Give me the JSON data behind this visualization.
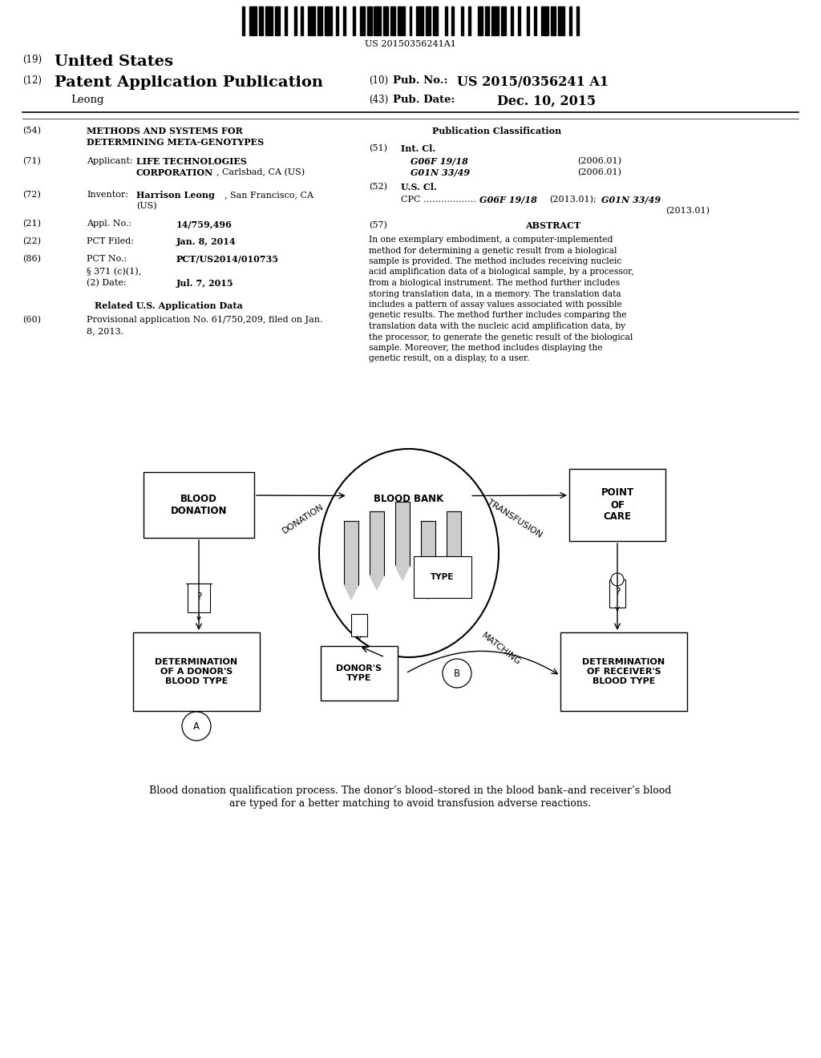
{
  "background_color": "#ffffff",
  "barcode_text": "US 20150356241A1",
  "patent_number": "US 2015/0356241 A1",
  "pub_date": "Dec. 10, 2015",
  "inventor_last": "Leong",
  "abstract_text": "In one exemplary embodiment, a computer-implemented method for determining a genetic result from a biological sample is provided. The method includes receiving nucleic acid amplification data of a biological sample, by a processor, from a biological instrument. The method further includes storing translation data, in a memory. The translation data includes a pattern of assay values associated with possible genetic results. The method further includes comparing the translation data with the nucleic acid amplification data, by the processor, to generate the genetic result of the biological sample. Moreover, the method includes displaying the genetic result, on a display, to a user.",
  "caption_line1": "Blood donation qualification process. The donor’s blood–stored in the blood bank–and receiver’s blood",
  "caption_line2": "are typed for a better matching to avoid transfusion adverse reactions."
}
